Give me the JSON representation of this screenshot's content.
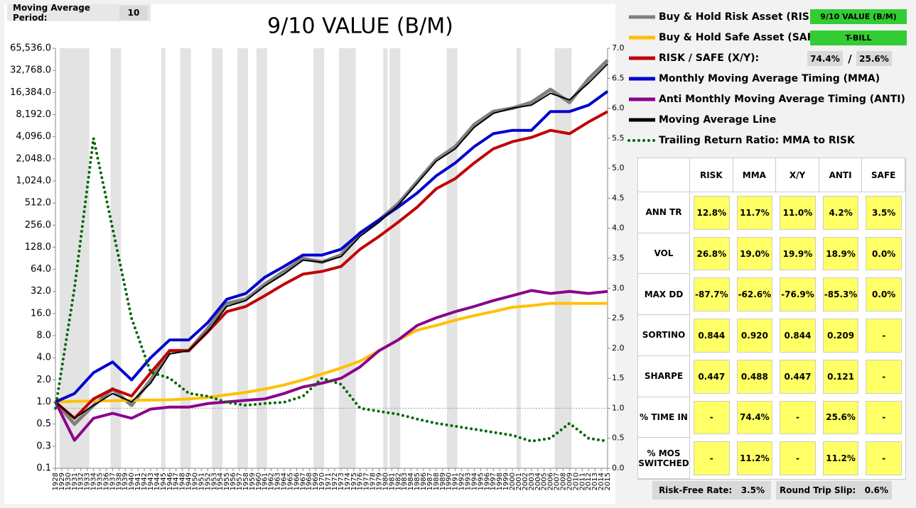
{
  "chart_data": {
    "type": "line",
    "title": "9/10 VALUE (B/M)",
    "log_y": true,
    "xlim": [
      1928,
      2015
    ],
    "xticks": [
      1928,
      1929,
      1930,
      1931,
      1932,
      1933,
      1934,
      1935,
      1936,
      1937,
      1938,
      1939,
      1940,
      1941,
      1942,
      1943,
      1944,
      1945,
      1946,
      1947,
      1948,
      1949,
      1950,
      1951,
      1952,
      1953,
      1954,
      1955,
      1956,
      1957,
      1958,
      1959,
      1960,
      1961,
      1962,
      1963,
      1964,
      1965,
      1966,
      1967,
      1968,
      1969,
      1970,
      1971,
      1972,
      1973,
      1974,
      1975,
      1976,
      1977,
      1978,
      1979,
      1980,
      1981,
      1982,
      1983,
      1984,
      1985,
      1986,
      1987,
      1988,
      1989,
      1990,
      1991,
      1992,
      1993,
      1994,
      1995,
      1996,
      1997,
      1998,
      1999,
      2000,
      2001,
      2002,
      2003,
      2004,
      2005,
      2006,
      2007,
      2008,
      2009,
      2010,
      2011,
      2012,
      2013,
      2014,
      2015
    ],
    "ylim": [
      0.125,
      65536
    ],
    "yticks": [
      {
        "value": 0.125,
        "label": "0.1"
      },
      {
        "value": 0.25,
        "label": "0.3"
      },
      0.5,
      {
        "value": 1,
        "label": "1.0"
      },
      {
        "value": 2,
        "label": "2.0"
      },
      {
        "value": 4,
        "label": "4.0"
      },
      {
        "value": 8,
        "label": "8.0"
      },
      {
        "value": 16,
        "label": "16.0"
      },
      {
        "value": 32,
        "label": "32.0"
      },
      {
        "value": 64,
        "label": "64.0"
      },
      {
        "value": 128,
        "label": "128.0"
      },
      {
        "value": 256,
        "label": "256.0"
      },
      {
        "value": 512,
        "label": "512.0"
      },
      {
        "value": 1024,
        "label": "1,024.0"
      },
      {
        "value": 2048,
        "label": "2,048.0"
      },
      {
        "value": 4096,
        "label": "4,096.0"
      },
      {
        "value": 8192,
        "label": "8,192.0"
      },
      {
        "value": 16384,
        "label": "16,384.0"
      },
      {
        "value": 32768,
        "label": "32,768.0"
      },
      {
        "value": 65536,
        "label": "65,536.0"
      }
    ],
    "y2lim": [
      0,
      7
    ],
    "y2ticks": [
      {
        "value": 0,
        "label": "0.0"
      },
      0.5,
      {
        "value": 1,
        "label": "1.0"
      },
      1.5,
      {
        "value": 2,
        "label": "2.0"
      },
      2.5,
      {
        "value": 3,
        "label": "3.0"
      },
      3.5,
      {
        "value": 4,
        "label": "4.0"
      },
      4.5,
      {
        "value": 5,
        "label": "5.0"
      },
      5.5,
      {
        "value": 6,
        "label": "6.0"
      },
      6.5,
      {
        "value": 7,
        "label": "7.0"
      }
    ],
    "shaded_periods": [
      [
        1929,
        1933
      ],
      [
        1937,
        1938
      ],
      [
        1945,
        1945
      ],
      [
        1948,
        1949
      ],
      [
        1953,
        1954
      ],
      [
        1957,
        1958
      ],
      [
        1960,
        1961
      ],
      [
        1969,
        1970
      ],
      [
        1973,
        1975
      ],
      [
        1980,
        1980
      ],
      [
        1981,
        1982
      ],
      [
        1990,
        1991
      ],
      [
        2001,
        2001
      ],
      [
        2007,
        2009
      ]
    ],
    "x": [
      1928,
      1931,
      1934,
      1937,
      1940,
      1943,
      1946,
      1949,
      1952,
      1955,
      1958,
      1961,
      1964,
      1967,
      1970,
      1973,
      1976,
      1979,
      1982,
      1985,
      1988,
      1991,
      1994,
      1997,
      2000,
      2003,
      2006,
      2009,
      2012,
      2015
    ],
    "series": [
      {
        "name": "Buy & Hold Risk Asset (RISK):",
        "color": "#808080",
        "width": 5,
        "values": [
          1.0,
          0.5,
          0.9,
          1.5,
          0.9,
          2,
          5,
          5,
          10,
          22,
          25,
          40,
          60,
          90,
          80,
          100,
          200,
          300,
          500,
          1000,
          2000,
          3000,
          6000,
          9000,
          10000,
          12000,
          18000,
          12000,
          25000,
          45000
        ]
      },
      {
        "name": "Buy & Hold Safe Asset (SAFE):",
        "color": "#ffc000",
        "width": 4,
        "values": [
          1.0,
          1.02,
          1.03,
          1.04,
          1.05,
          1.06,
          1.07,
          1.1,
          1.15,
          1.25,
          1.35,
          1.5,
          1.7,
          2.0,
          2.4,
          2.9,
          3.6,
          5,
          7,
          9.5,
          11,
          13,
          15,
          17,
          19.5,
          20.5,
          22,
          22,
          22,
          22
        ]
      },
      {
        "name": "RISK / SAFE (X/Y):",
        "color": "#c00000",
        "width": 4,
        "values": [
          1.0,
          0.6,
          1.1,
          1.5,
          1.2,
          2.5,
          5,
          5,
          9,
          17,
          20,
          28,
          40,
          55,
          60,
          70,
          120,
          180,
          280,
          450,
          800,
          1100,
          1800,
          2800,
          3500,
          4000,
          5000,
          4500,
          6500,
          9000
        ]
      },
      {
        "name": "Monthly Moving Average Timing (MMA)",
        "color": "#0000cc",
        "width": 4,
        "values": [
          1.0,
          1.3,
          2.5,
          3.5,
          2,
          4,
          7,
          7,
          12,
          25,
          30,
          50,
          70,
          100,
          100,
          120,
          200,
          300,
          450,
          700,
          1200,
          1800,
          3000,
          4500,
          5000,
          5000,
          9000,
          9000,
          11000,
          17000
        ]
      },
      {
        "name": "Anti Monthly Moving Average Timing (ANTI)",
        "color": "#8b008b",
        "width": 4,
        "values": [
          1.0,
          0.3,
          0.6,
          0.7,
          0.6,
          0.8,
          0.85,
          0.85,
          0.95,
          1.0,
          1.05,
          1.1,
          1.3,
          1.6,
          1.8,
          2.1,
          3,
          5,
          7,
          11,
          14,
          17,
          20,
          24,
          28,
          33,
          30,
          32,
          30,
          32
        ]
      },
      {
        "name": "Moving Average Line",
        "color": "#000000",
        "width": 2,
        "values": [
          1.0,
          0.6,
          0.9,
          1.3,
          1.0,
          1.8,
          4.5,
          5,
          9,
          20,
          24,
          38,
          55,
          85,
          80,
          95,
          180,
          280,
          480,
          950,
          1900,
          2800,
          5500,
          8500,
          10000,
          11000,
          16000,
          13000,
          22000,
          40000
        ]
      },
      {
        "name": "Trailing Return Ratio: MMA to RISK",
        "color": "#006600",
        "width": 4,
        "style": "dotted",
        "axis": "y2",
        "values": [
          1.0,
          3.0,
          5.5,
          4.0,
          2.5,
          1.6,
          1.5,
          1.25,
          1.2,
          1.1,
          1.05,
          1.08,
          1.1,
          1.2,
          1.5,
          1.4,
          1.0,
          0.95,
          0.9,
          0.82,
          0.75,
          0.7,
          0.65,
          0.6,
          0.55,
          0.45,
          0.5,
          0.75,
          0.5,
          0.45
        ]
      }
    ]
  },
  "settings": {
    "ma_label": "Moving Average Period:",
    "ma_period": 10,
    "risk_asset": "9/10 VALUE (B/M)",
    "safe_asset": "T-BILL",
    "x_weight": "74.4%",
    "separator": "/",
    "y_weight": "25.6%",
    "rf_label": "Risk-Free Rate:",
    "rf_value": "3.5%",
    "slip_label": "Round Trip Slip:",
    "slip_value": "0.6%"
  },
  "table": {
    "columns": [
      "RISK",
      "MMA",
      "X/Y",
      "ANTI",
      "SAFE"
    ],
    "rows": [
      {
        "label": "ANN TR",
        "cells": [
          "12.8%",
          "11.7%",
          "11.0%",
          "4.2%",
          "3.5%"
        ]
      },
      {
        "label": "VOL",
        "cells": [
          "26.8%",
          "19.0%",
          "19.9%",
          "18.9%",
          "0.0%"
        ]
      },
      {
        "label": "MAX DD",
        "cells": [
          "-87.7%",
          "-62.6%",
          "-76.9%",
          "-85.3%",
          "0.0%"
        ]
      },
      {
        "label": "SORTINO",
        "cells": [
          "0.844",
          "0.920",
          "0.844",
          "0.209",
          "-"
        ]
      },
      {
        "label": "SHARPE",
        "cells": [
          "0.447",
          "0.488",
          "0.447",
          "0.121",
          "-"
        ]
      },
      {
        "label": "% TIME IN",
        "cells": [
          "-",
          "74.4%",
          "-",
          "25.6%",
          "-"
        ]
      },
      {
        "label": "% MOS SWITCHED",
        "cells": [
          "-",
          "11.2%",
          "-",
          "11.2%",
          "-"
        ]
      }
    ]
  }
}
